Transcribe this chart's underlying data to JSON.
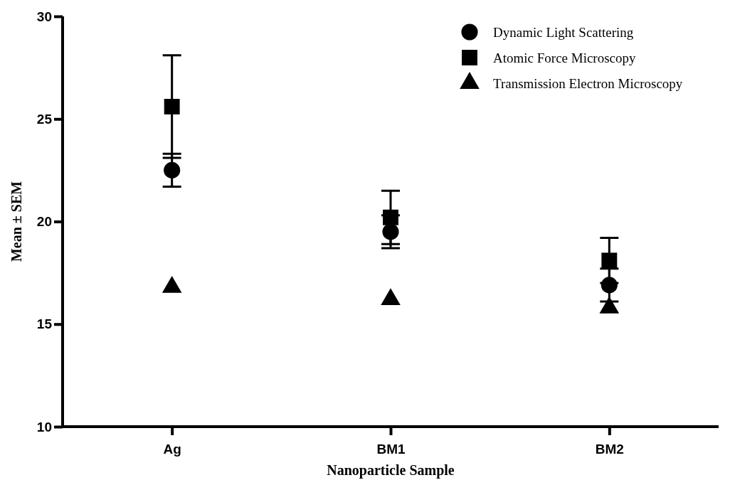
{
  "chart_data": {
    "type": "scatter",
    "xlabel": "Nanoparticle Sample",
    "ylabel": "Mean ± SEM",
    "categories": [
      "Ag",
      "BM1",
      "BM2"
    ],
    "ylim": [
      10,
      30
    ],
    "yticks": [
      10,
      15,
      20,
      25,
      30
    ],
    "grid": false,
    "legend": "top right",
    "series": [
      {
        "name": "Dynamic Light Scattering",
        "color": "#000000",
        "marker": "circle",
        "values": [
          22.5,
          19.5,
          16.9
        ],
        "errors": [
          0.8,
          0.8,
          0.8
        ]
      },
      {
        "name": "Atomic Force Microscopy",
        "color": "#000000",
        "marker": "square",
        "values": [
          25.6,
          20.2,
          18.1
        ],
        "errors": [
          2.5,
          1.3,
          1.1
        ]
      },
      {
        "name": "Transmission Electron Microscopy",
        "color": "#000000",
        "marker": "triangle",
        "values": [
          16.8,
          16.2,
          15.8
        ]
      }
    ]
  }
}
